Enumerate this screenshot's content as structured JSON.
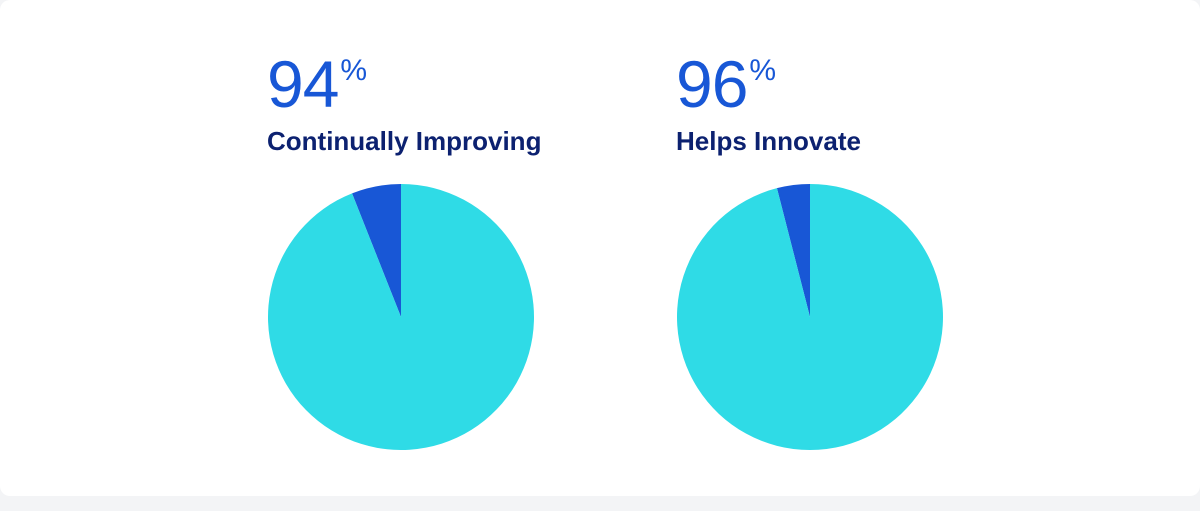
{
  "colors": {
    "major": "#2fdbe6",
    "minor": "#1857d6",
    "number": "#1857d6",
    "label": "#0c2170"
  },
  "chart_data": [
    {
      "type": "pie",
      "title": "Continually Improving",
      "value_label": "94",
      "unit": "%",
      "slices": [
        {
          "value": 94
        },
        {
          "value": 6
        }
      ]
    },
    {
      "type": "pie",
      "title": "Helps Innovate",
      "value_label": "96",
      "unit": "%",
      "slices": [
        {
          "value": 96
        },
        {
          "value": 4
        }
      ]
    }
  ]
}
